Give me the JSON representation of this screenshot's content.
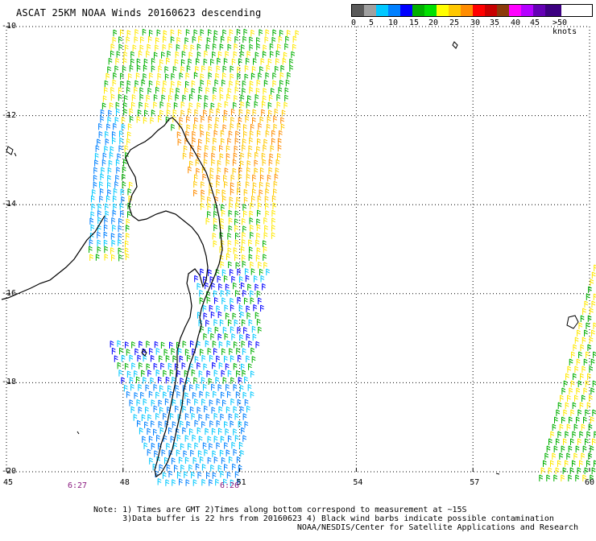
{
  "title": "ASCAT 25KM NOAA Winds 20160623 descending",
  "legend": {
    "colors": [
      "#5a5a5a",
      "#a0a0a0",
      "#00c8ff",
      "#0080ff",
      "#0000ff",
      "#00b000",
      "#00e000",
      "#ffff00",
      "#ffc800",
      "#ff8c00",
      "#ff0000",
      "#c80000",
      "#8b3a0a",
      "#ff00ff",
      "#b400ff",
      "#6400b4",
      "#3c0080"
    ],
    "labels": [
      "0",
      "5",
      "10",
      "15",
      "20",
      "25",
      "30",
      "35",
      "40",
      "45",
      ">50 knots"
    ]
  },
  "axes": {
    "x_ticks": [
      "45",
      "48",
      "51",
      "54",
      "57",
      "60"
    ],
    "y_ticks": [
      "-10",
      "-12",
      "-14",
      "-16",
      "-18",
      "-20"
    ]
  },
  "times": [
    "6:27",
    "6:26"
  ],
  "note_lines": [
    "Note: 1) Times are GMT 2)Times along bottom correspond to measurement at ~15S",
    "      3)Data buffer is 22 hrs from 20160623 4) Black wind barbs indicate possible contamination",
    "                                          NOAA/NESDIS/Center for Satellite Applications and Research"
  ]
}
